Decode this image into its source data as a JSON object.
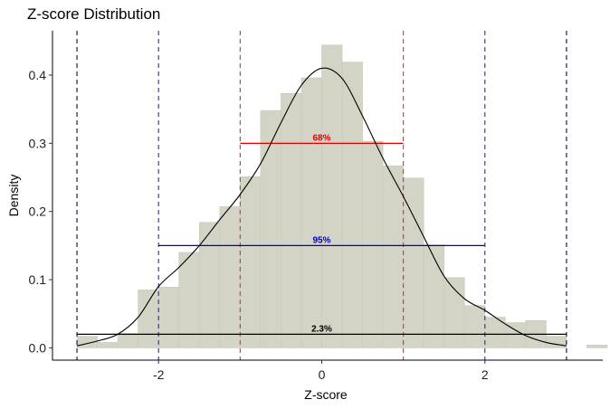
{
  "chart_data": {
    "type": "histogram",
    "title": "Z-score Distribution",
    "xlabel": "Z-score",
    "ylabel": "Density",
    "xlim": [
      -3.3,
      3.4
    ],
    "ylim": [
      -0.018,
      0.465
    ],
    "x_ticks": [
      -2,
      0,
      2
    ],
    "y_ticks": [
      0.0,
      0.1,
      0.2,
      0.3,
      0.4
    ],
    "y_tick_labels": [
      "0.0",
      "0.1",
      "0.2",
      "0.3",
      "0.4"
    ],
    "bin_width": 0.25,
    "bins": [
      {
        "x0": -3.0,
        "x1": -2.75,
        "density": 0.017
      },
      {
        "x0": -2.75,
        "x1": -2.5,
        "density": 0.008
      },
      {
        "x0": -2.5,
        "x1": -2.25,
        "density": 0.021
      },
      {
        "x0": -2.25,
        "x1": -2.0,
        "density": 0.085
      },
      {
        "x0": -2.0,
        "x1": -1.75,
        "density": 0.089
      },
      {
        "x0": -1.75,
        "x1": -1.5,
        "density": 0.14
      },
      {
        "x0": -1.5,
        "x1": -1.25,
        "density": 0.184
      },
      {
        "x0": -1.25,
        "x1": -1.0,
        "density": 0.207
      },
      {
        "x0": -1.0,
        "x1": -0.75,
        "density": 0.251
      },
      {
        "x0": -0.75,
        "x1": -0.5,
        "density": 0.348
      },
      {
        "x0": -0.5,
        "x1": -0.25,
        "density": 0.373
      },
      {
        "x0": -0.25,
        "x1": 0.0,
        "density": 0.396
      },
      {
        "x0": 0.0,
        "x1": 0.25,
        "density": 0.444
      },
      {
        "x0": 0.25,
        "x1": 0.5,
        "density": 0.419
      },
      {
        "x0": 0.5,
        "x1": 0.75,
        "density": 0.303
      },
      {
        "x0": 0.75,
        "x1": 1.0,
        "density": 0.267
      },
      {
        "x0": 1.0,
        "x1": 1.25,
        "density": 0.249
      },
      {
        "x0": 1.25,
        "x1": 1.5,
        "density": 0.151
      },
      {
        "x0": 1.5,
        "x1": 1.75,
        "density": 0.103
      },
      {
        "x0": 1.75,
        "x1": 2.0,
        "density": 0.062
      },
      {
        "x0": 2.0,
        "x1": 2.25,
        "density": 0.045
      },
      {
        "x0": 2.25,
        "x1": 2.5,
        "density": 0.037
      },
      {
        "x0": 2.5,
        "x1": 2.75,
        "density": 0.04
      },
      {
        "x0": 2.75,
        "x1": 3.0,
        "density": 0.017
      },
      {
        "x0": 3.0,
        "x1": 3.25,
        "density": 0.0
      },
      {
        "x0": 3.25,
        "x1": 3.5,
        "density": 0.004
      }
    ],
    "density_curve": {
      "x": [
        -3.0,
        -2.75,
        -2.5,
        -2.25,
        -2.0,
        -1.75,
        -1.5,
        -1.25,
        -1.0,
        -0.75,
        -0.5,
        -0.25,
        0.0,
        0.25,
        0.5,
        0.75,
        1.0,
        1.25,
        1.5,
        1.75,
        2.0,
        2.25,
        2.5,
        2.75,
        3.0
      ],
      "y": [
        0.003,
        0.01,
        0.02,
        0.045,
        0.09,
        0.118,
        0.15,
        0.188,
        0.225,
        0.27,
        0.33,
        0.385,
        0.41,
        0.395,
        0.34,
        0.278,
        0.222,
        0.163,
        0.105,
        0.072,
        0.055,
        0.035,
        0.018,
        0.008,
        0.003
      ]
    },
    "reference_lines": [
      {
        "x": -3,
        "color": "#0a0a3a"
      },
      {
        "x": -2,
        "color": "#2a2ab0"
      },
      {
        "x": -1,
        "color": "#cc3333"
      },
      {
        "x": 1,
        "color": "#cc3333"
      },
      {
        "x": 2,
        "color": "#2a2ab0"
      },
      {
        "x": 3,
        "color": "#0a0a3a"
      }
    ],
    "bands": [
      {
        "label": "68%",
        "x0": -1,
        "x1": 1,
        "y": 0.3,
        "color": "#e00000"
      },
      {
        "label": "95%",
        "x0": -2,
        "x1": 2,
        "y": 0.15,
        "color": "#0000cc"
      },
      {
        "label": "2.3%",
        "x0": -3,
        "x1": 3,
        "y": 0.02,
        "color": "#000000"
      }
    ],
    "colors": {
      "bar_fill": "#d3d4c6",
      "bar_stroke": "#c8c9bb",
      "curve": "#000000",
      "axis": "#000000"
    },
    "grid": false,
    "legend": "none"
  }
}
